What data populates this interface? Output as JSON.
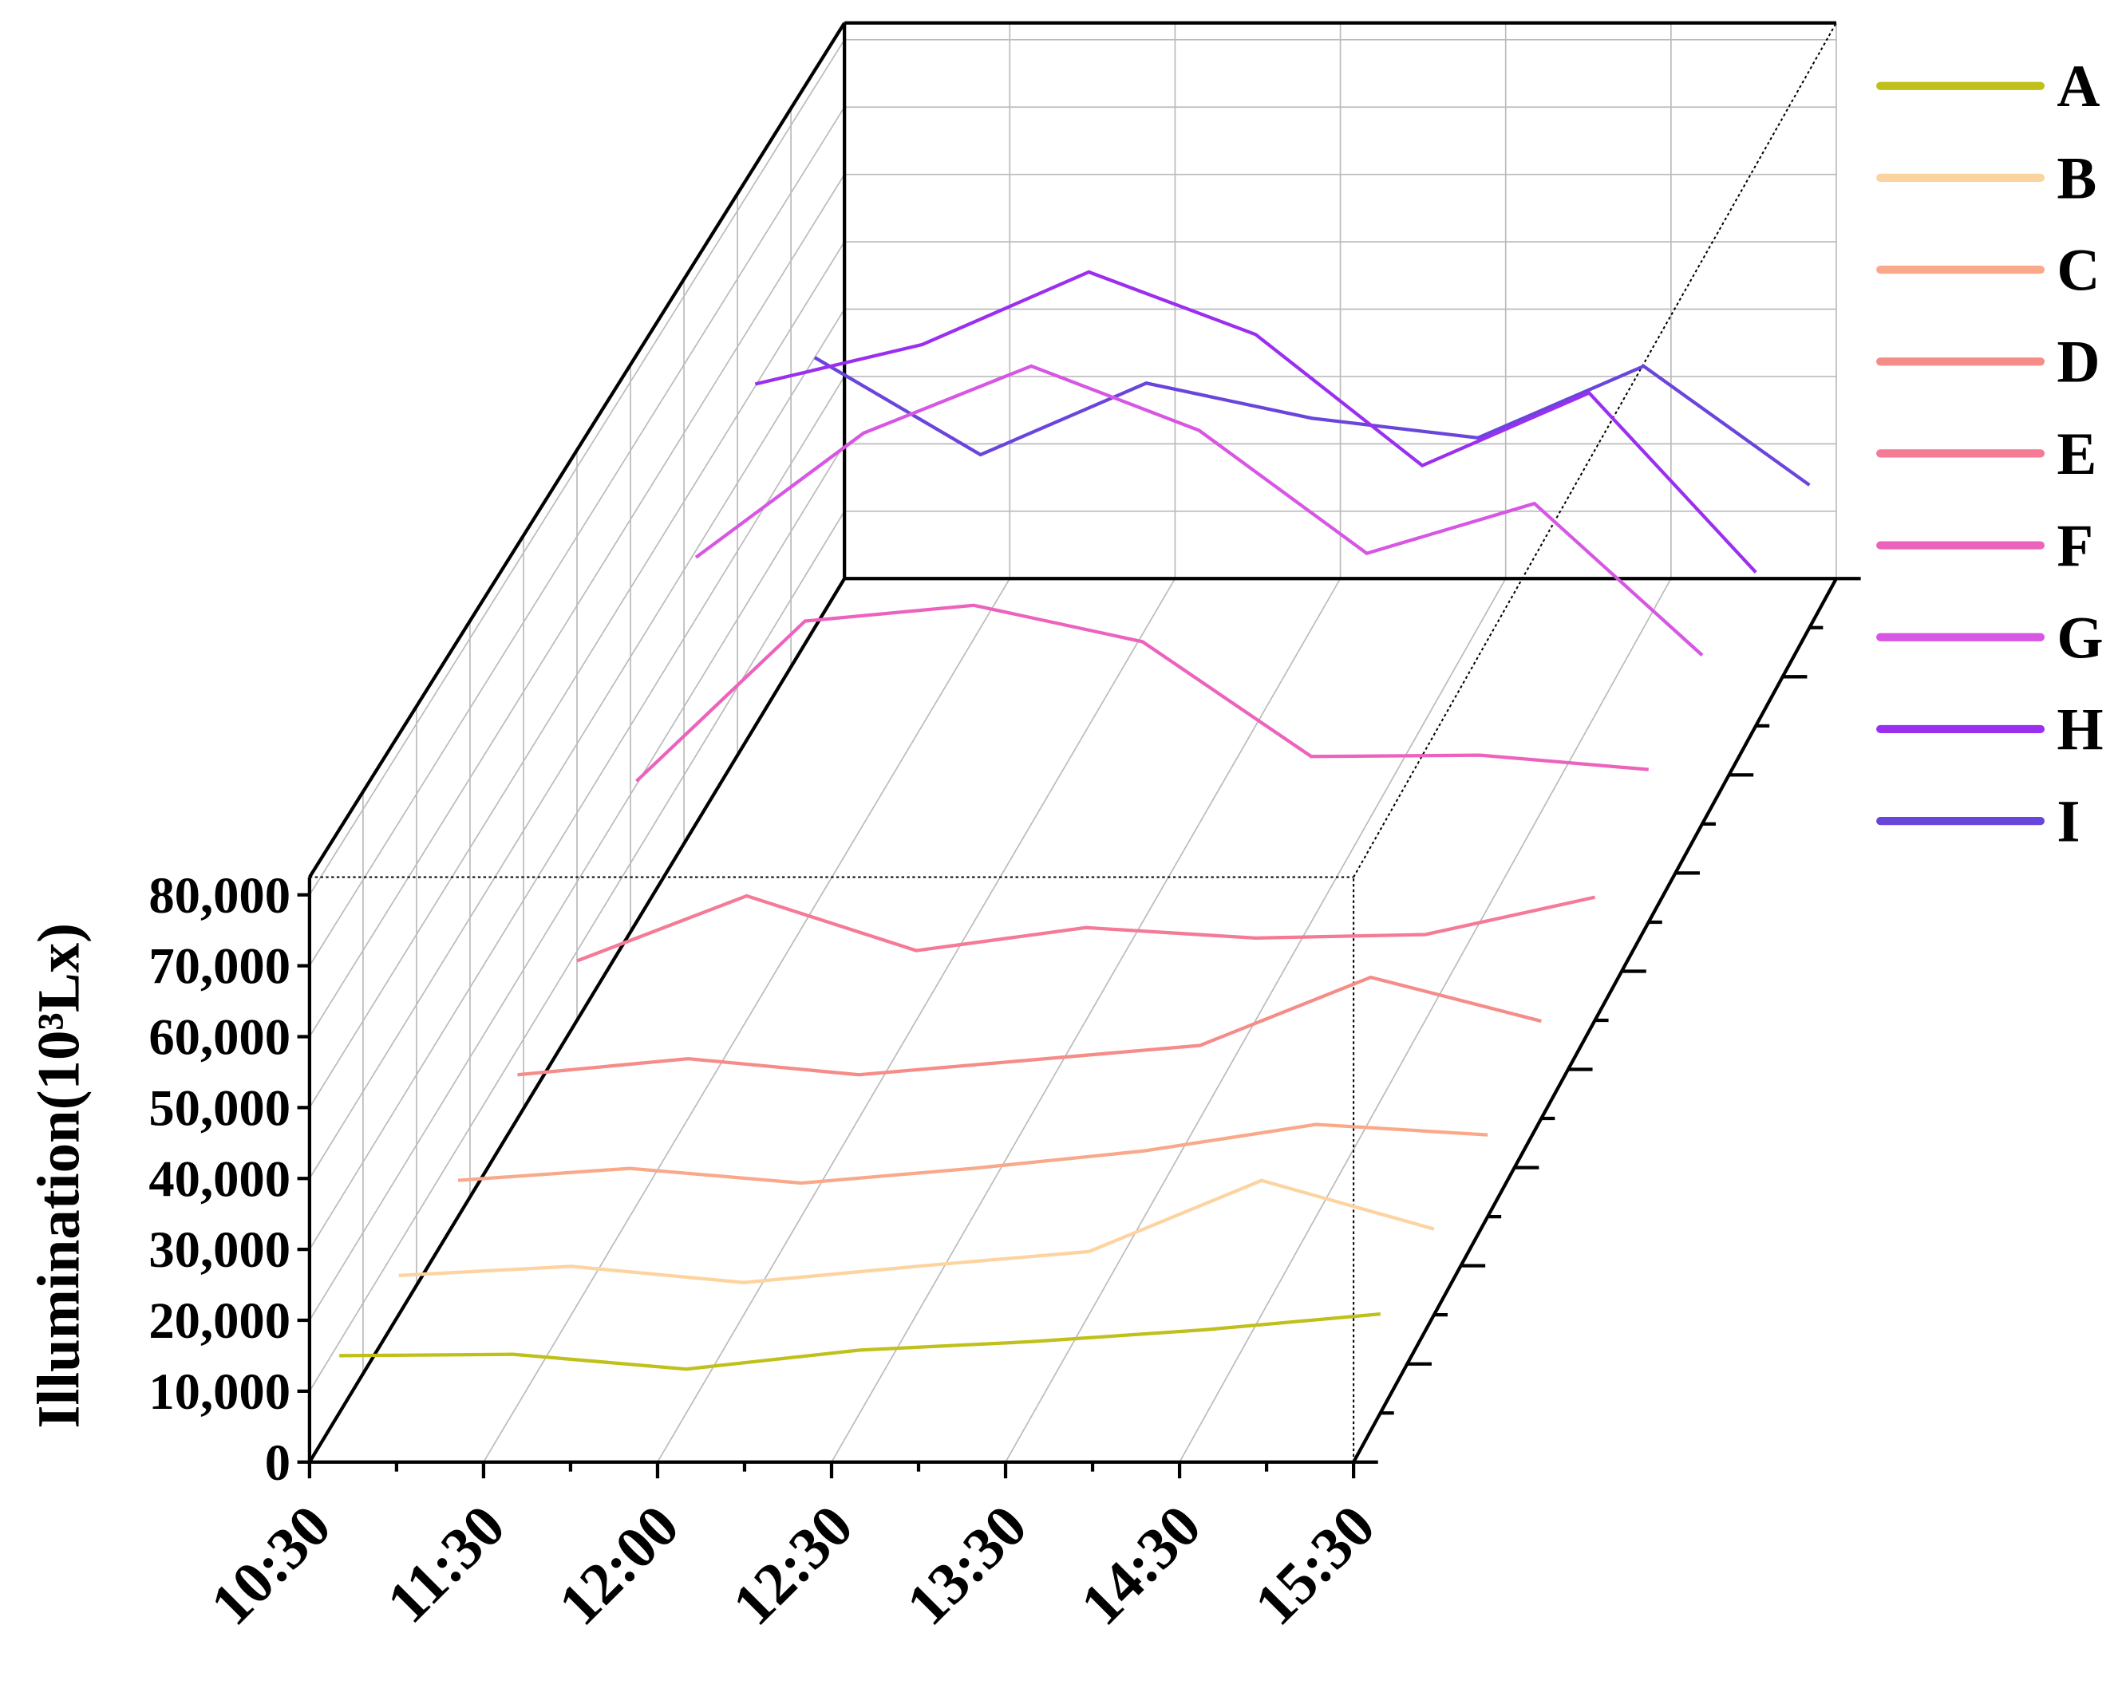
{
  "chart_data": {
    "type": "line3d",
    "y_label": "Illumination(10³Lx)",
    "categories": [
      "10:30",
      "11:30",
      "12:00",
      "12:30",
      "13:30",
      "14:30",
      "15:30"
    ],
    "ylim": [
      0,
      82500
    ],
    "yticks": [
      0,
      {
        "value": 10000,
        "label": "10,000"
      },
      {
        "value": 20000,
        "label": "20,000"
      },
      {
        "value": 30000,
        "label": "30,000"
      },
      {
        "value": 40000,
        "label": "40,000"
      },
      {
        "value": 50000,
        "label": "50,000"
      },
      {
        "value": 60000,
        "label": "60,000"
      },
      {
        "value": 70000,
        "label": "70,000"
      },
      {
        "value": 80000,
        "label": "80,000"
      }
    ],
    "grid": true,
    "legend": "right",
    "series": [
      {
        "name": "A",
        "color": "#bfc01a",
        "values": [
          8100,
          8300,
          6200,
          8900,
          10100,
          11800,
          14000
        ]
      },
      {
        "name": "B",
        "color": "#fdd3a0",
        "values": [
          5600,
          6900,
          4600,
          6900,
          9000,
          19100,
          12200
        ]
      },
      {
        "name": "C",
        "color": "#f9a98a",
        "values": [
          5200,
          6900,
          4800,
          6900,
          9400,
          13200,
          11700
        ]
      },
      {
        "name": "D",
        "color": "#f58c88",
        "values": [
          6300,
          8600,
          6300,
          8400,
          10500,
          20300,
          14000
        ]
      },
      {
        "name": "E",
        "color": "#f47a96",
        "values": [
          8600,
          18000,
          10100,
          13400,
          11900,
          12400,
          17800
        ]
      },
      {
        "name": "F",
        "color": "#ec62bd",
        "values": [
          20500,
          43800,
          46100,
          40800,
          24100,
          24300,
          22200
        ]
      },
      {
        "name": "G",
        "color": "#d756e3",
        "values": [
          39000,
          57200,
          67000,
          57600,
          39600,
          46900,
          24700
        ]
      },
      {
        "name": "H",
        "color": "#9b2ff0",
        "values": [
          50300,
          56100,
          66800,
          57600,
          38300,
          49000,
          22600
        ]
      },
      {
        "name": "I",
        "color": "#6a45db",
        "values": [
          40000,
          25600,
          36200,
          31000,
          28100,
          38700,
          21100
        ]
      }
    ]
  }
}
